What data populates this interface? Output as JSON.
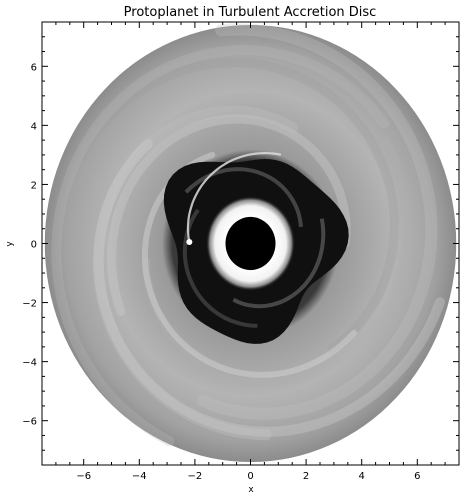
{
  "title": "Protoplanet in Turbulent Accretion Disc",
  "xlabel": "x",
  "ylabel": "y",
  "x_range": [
    -7.5,
    7.5
  ],
  "y_range": [
    -7.5,
    7.5
  ],
  "x_ticks": [
    -6,
    -4,
    -2,
    0,
    2,
    4,
    6
  ],
  "y_ticks": [
    -6,
    -4,
    -2,
    0,
    2,
    4,
    6
  ],
  "x_tick_labels": [
    "−6",
    "−4",
    "−2",
    "0",
    "2",
    "4",
    "6"
  ],
  "y_tick_labels": [
    "−6",
    "−4",
    "−2",
    "0",
    "2",
    "4",
    "6"
  ],
  "disc": {
    "inner_hole_radius": 0.9,
    "inner_bright_ring_radius": 1.6,
    "gap_outer_radius": 3.1,
    "outer_radius": 7.4,
    "protoplanet_position": [
      -2.2,
      0.05
    ]
  },
  "colors": {
    "background": "#ffffff",
    "disc_gray": "#a8a8a8",
    "gap": "#0f0f0f",
    "bright_ring": "#ffffff",
    "inner_hole": "#000000"
  }
}
